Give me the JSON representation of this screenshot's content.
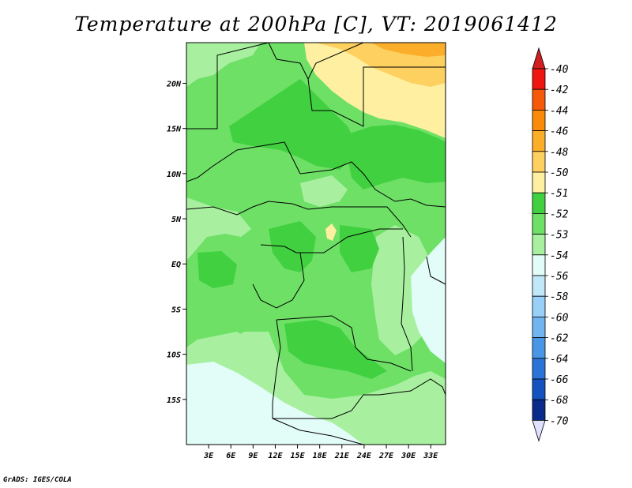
{
  "title": "Temperature at 200hPa [C], VT: 2019061412",
  "footer": "GrADS: IGES/COLA",
  "axes": {
    "lon_ticks": [
      "3E",
      "6E",
      "9E",
      "12E",
      "15E",
      "18E",
      "21E",
      "24E",
      "27E",
      "30E",
      "33E"
    ],
    "lat_ticks": [
      "20N",
      "15N",
      "10N",
      "5N",
      "EQ",
      "5S",
      "10S",
      "15S"
    ],
    "lon_range": [
      0,
      35
    ],
    "lat_range": [
      -20,
      24.5
    ]
  },
  "colorbar": {
    "labels": [
      "-40",
      "-42",
      "-44",
      "-46",
      "-48",
      "-50",
      "-51",
      "-52",
      "-53",
      "-54",
      "-56",
      "-58",
      "-60",
      "-62",
      "-64",
      "-66",
      "-68",
      "-70"
    ],
    "colors": [
      "#f0150e",
      "#f55a0a",
      "#fa8a0a",
      "#fcae2a",
      "#fdd060",
      "#fef0a0",
      "#40d040",
      "#6ee066",
      "#a8f0a0",
      "#e2fcf8",
      "#c0e8f8",
      "#98d0f8",
      "#70b4f0",
      "#4a96e6",
      "#2a74d8",
      "#1452c0",
      "#0a2a8c"
    ],
    "top_color": "#d11e1e",
    "bottom_color": "#e0e0ff"
  },
  "legend_colors": {
    "very_light": "#e2fcf8",
    "light": "#a8f0a0",
    "medium": "#6ee066",
    "dark": "#40d040",
    "pale_yellow": "#fef0a0",
    "yellow": "#fdd060",
    "orange": "#fcae2a"
  }
}
